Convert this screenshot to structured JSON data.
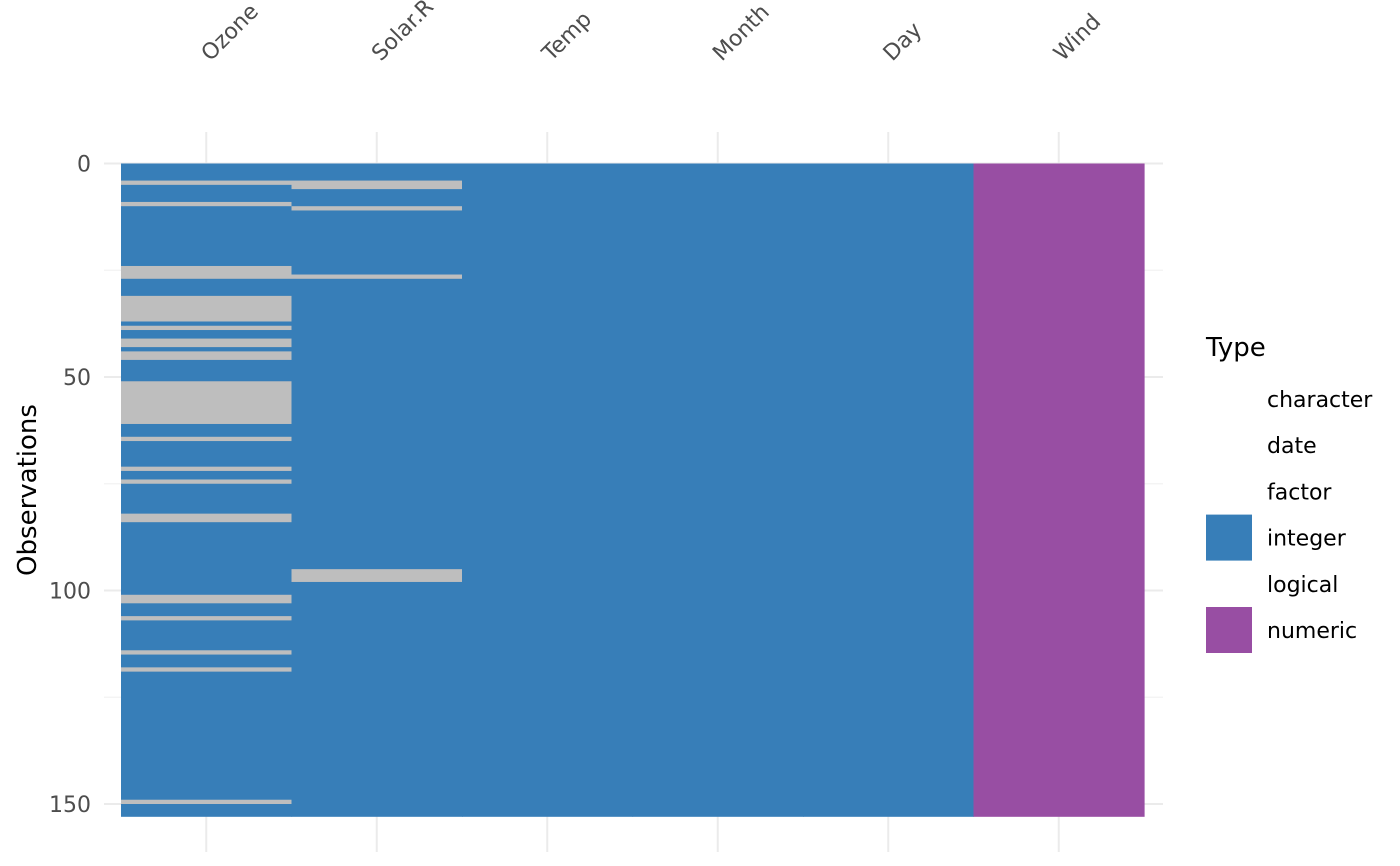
{
  "chart_data": {
    "type": "heatmap",
    "title": "",
    "xlabel": "",
    "ylabel": "Observations",
    "columns": [
      {
        "name": "Ozone",
        "type": "integer"
      },
      {
        "name": "Solar.R",
        "type": "integer"
      },
      {
        "name": "Temp",
        "type": "integer"
      },
      {
        "name": "Month",
        "type": "integer"
      },
      {
        "name": "Day",
        "type": "integer"
      },
      {
        "name": "Wind",
        "type": "numeric"
      }
    ],
    "n_rows": 153,
    "y_ticks": [
      0,
      50,
      100,
      150
    ],
    "missing_rows": {
      "Ozone": [
        5,
        10,
        25,
        26,
        27,
        32,
        33,
        34,
        35,
        36,
        37,
        39,
        42,
        43,
        45,
        46,
        52,
        53,
        54,
        55,
        56,
        57,
        58,
        59,
        60,
        61,
        65,
        72,
        75,
        83,
        84,
        102,
        103,
        107,
        115,
        119,
        150
      ],
      "Solar.R": [
        5,
        6,
        11,
        27,
        96,
        97,
        98
      ],
      "Temp": [],
      "Month": [],
      "Day": [],
      "Wind": []
    },
    "missing_color": "#bebebe",
    "legend": {
      "title": "Type",
      "position": "right",
      "entries": [
        {
          "label": "character",
          "color": null
        },
        {
          "label": "date",
          "color": null
        },
        {
          "label": "factor",
          "color": null
        },
        {
          "label": "integer",
          "color": "#377eb8"
        },
        {
          "label": "logical",
          "color": null
        },
        {
          "label": "numeric",
          "color": "#984ea3"
        }
      ]
    },
    "grid": true
  }
}
